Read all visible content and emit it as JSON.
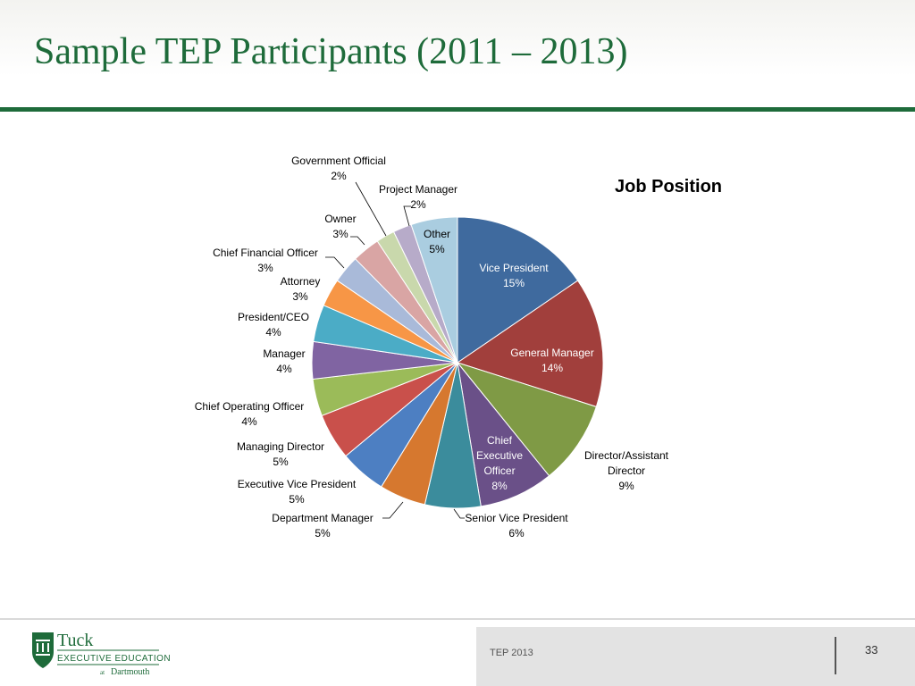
{
  "slide": {
    "title": "Sample TEP Participants (2011 – 2013)",
    "footer_tag": "TEP 2013",
    "page_number": "33",
    "logo": {
      "name": "Tuck",
      "line1": "EXECUTIVE EDUCATION",
      "line2_small": "at",
      "line2": "Dartmouth"
    }
  },
  "chart_data": {
    "type": "pie",
    "title": "Job Position",
    "start": "12 o'clock, clockwise",
    "slices": [
      {
        "label": "Vice President",
        "value": 15,
        "display": "15%",
        "color": "#3f6a9e"
      },
      {
        "label": "General Manager",
        "value": 14,
        "display": "14%",
        "color": "#a13f3c"
      },
      {
        "label": "Director/Assistant Director",
        "value": 9,
        "display": "9%",
        "color": "#7f9a45"
      },
      {
        "label": "Chief Executive Officer",
        "value": 8,
        "display": "8%",
        "color": "#6a5088"
      },
      {
        "label": "Senior Vice President",
        "value": 6,
        "display": "6%",
        "color": "#3b8c9c"
      },
      {
        "label": "Department Manager",
        "value": 5,
        "display": "5%",
        "color": "#d6782f"
      },
      {
        "label": "Executive Vice President",
        "value": 5,
        "display": "5%",
        "color": "#4d7fc2"
      },
      {
        "label": "Managing Director",
        "value": 5,
        "display": "5%",
        "color": "#c9504b"
      },
      {
        "label": "Chief Operating Officer",
        "value": 4,
        "display": "4%",
        "color": "#9bbb59"
      },
      {
        "label": "Manager",
        "value": 4,
        "display": "4%",
        "color": "#8064a2"
      },
      {
        "label": "President/CEO",
        "value": 4,
        "display": "4%",
        "color": "#4bacc6"
      },
      {
        "label": "Attorney",
        "value": 3,
        "display": "3%",
        "color": "#f79646"
      },
      {
        "label": "Chief Financial Officer",
        "value": 3,
        "display": "3%",
        "color": "#a9bad9"
      },
      {
        "label": "Owner",
        "value": 3,
        "display": "3%",
        "color": "#d9a5a4"
      },
      {
        "label": "Government Official",
        "value": 2,
        "display": "2%",
        "color": "#c9d8ac"
      },
      {
        "label": "Project Manager",
        "value": 2,
        "display": "2%",
        "color": "#b7abc9"
      },
      {
        "label": "Other",
        "value": 5,
        "display": "5%",
        "color": "#aacde0"
      }
    ]
  }
}
